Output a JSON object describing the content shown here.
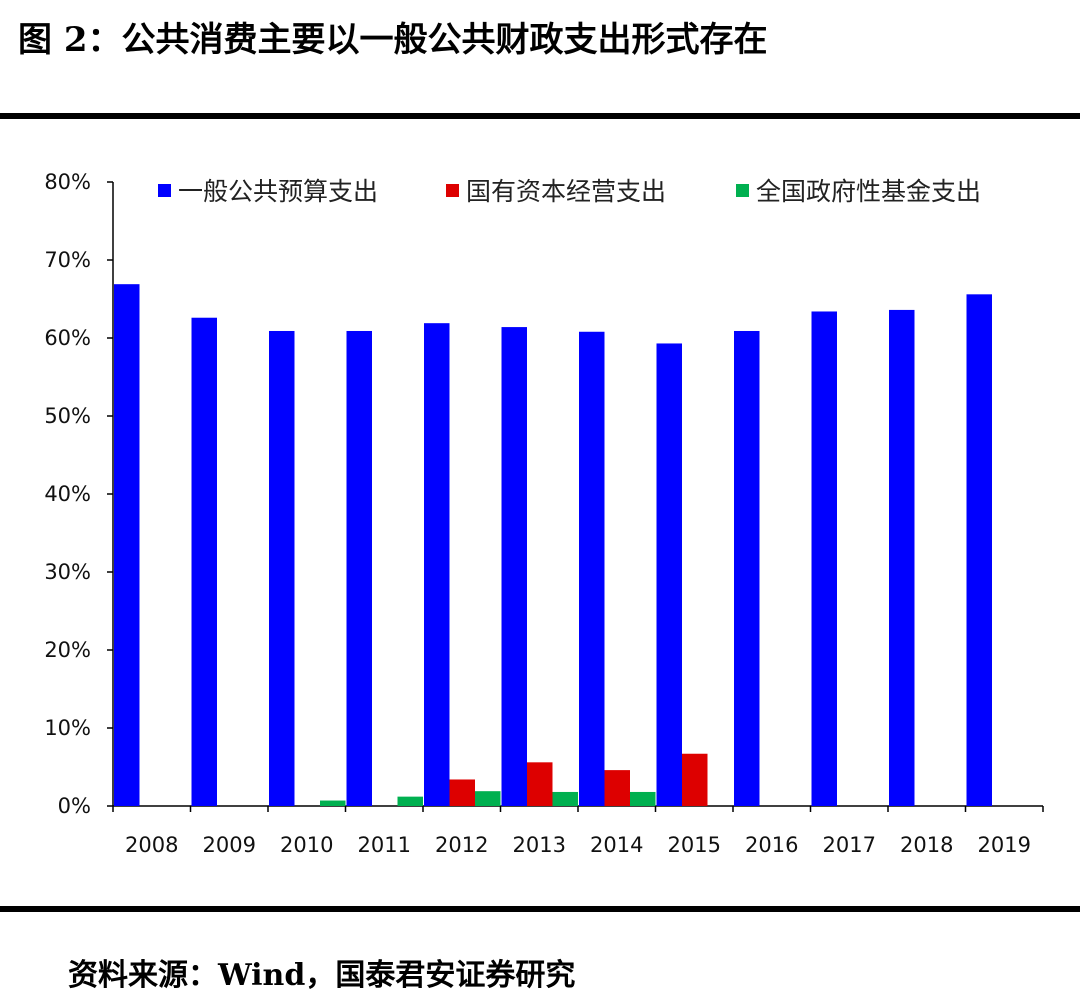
{
  "figure": {
    "title": "图 2：公共消费主要以一般公共财政支出形式存在",
    "source": "资料来源：Wind，国泰君安证券研究"
  },
  "chart_data": {
    "type": "bar",
    "title": "",
    "xlabel": "",
    "ylabel": "",
    "categories": [
      "2008",
      "2009",
      "2010",
      "2011",
      "2012",
      "2013",
      "2014",
      "2015",
      "2016",
      "2017",
      "2018",
      "2019"
    ],
    "series": [
      {
        "name": "一般公共预算支出",
        "color": "#0000FF",
        "values": [
          66.9,
          62.6,
          60.9,
          60.9,
          61.9,
          61.4,
          60.8,
          59.3,
          60.9,
          63.4,
          63.6,
          65.6
        ]
      },
      {
        "name": "国有资本经营支出",
        "color": "#DD0000",
        "values": [
          null,
          null,
          null,
          null,
          3.4,
          5.6,
          4.6,
          6.7,
          null,
          null,
          null,
          null
        ]
      },
      {
        "name": "全国政府性基金支出",
        "color": "#00B050",
        "values": [
          null,
          null,
          0.7,
          1.2,
          1.9,
          1.8,
          1.8,
          null,
          null,
          null,
          null,
          null
        ]
      }
    ],
    "ylim": [
      0,
      80
    ],
    "yticks": [
      0,
      10,
      20,
      30,
      40,
      50,
      60,
      70,
      80
    ],
    "ytick_labels": [
      "0%",
      "10%",
      "20%",
      "30%",
      "40%",
      "50%",
      "60%",
      "70%",
      "80%"
    ],
    "grid": false,
    "legend": "top"
  }
}
